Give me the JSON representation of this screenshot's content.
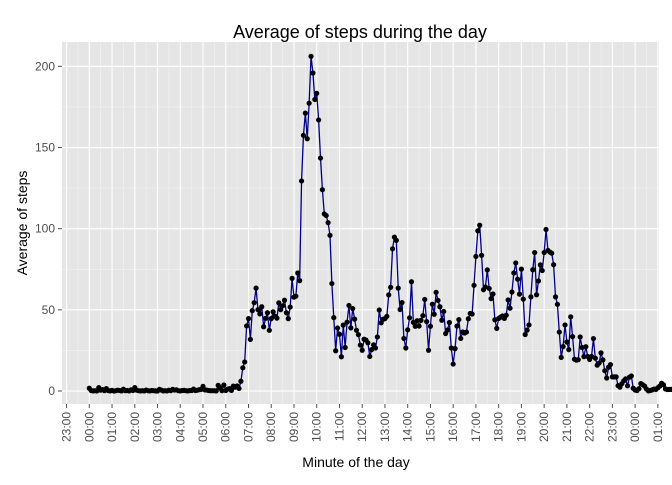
{
  "chart_data": {
    "type": "line",
    "title": "Average of steps during the day",
    "xlabel": "Minute of the day",
    "ylabel": "Average of steps",
    "ylim": [
      -8,
      215
    ],
    "x_range_hours": [
      -1.2,
      25.05
    ],
    "grid": true,
    "background": "#e5e5e5",
    "grid_color": "#ffffff",
    "line_color": "#00008b",
    "marker_color": "#000000",
    "xticks": [
      {
        "hour": -1,
        "label": "23:00"
      },
      {
        "hour": 0,
        "label": "00:00"
      },
      {
        "hour": 1,
        "label": "01:00"
      },
      {
        "hour": 2,
        "label": "02:00"
      },
      {
        "hour": 3,
        "label": "03:00"
      },
      {
        "hour": 4,
        "label": "04:00"
      },
      {
        "hour": 5,
        "label": "05:00"
      },
      {
        "hour": 6,
        "label": "06:00"
      },
      {
        "hour": 7,
        "label": "07:00"
      },
      {
        "hour": 8,
        "label": "08:00"
      },
      {
        "hour": 9,
        "label": "09:00"
      },
      {
        "hour": 10,
        "label": "10:00"
      },
      {
        "hour": 11,
        "label": "11:00"
      },
      {
        "hour": 12,
        "label": "12:00"
      },
      {
        "hour": 13,
        "label": "13:00"
      },
      {
        "hour": 14,
        "label": "14:00"
      },
      {
        "hour": 15,
        "label": "15:00"
      },
      {
        "hour": 16,
        "label": "16:00"
      },
      {
        "hour": 17,
        "label": "17:00"
      },
      {
        "hour": 18,
        "label": "18:00"
      },
      {
        "hour": 19,
        "label": "19:00"
      },
      {
        "hour": 20,
        "label": "20:00"
      },
      {
        "hour": 21,
        "label": "21:00"
      },
      {
        "hour": 22,
        "label": "22:00"
      },
      {
        "hour": 23,
        "label": "23:00"
      },
      {
        "hour": 24,
        "label": "00:00"
      },
      {
        "hour": 25,
        "label": "01:00"
      }
    ],
    "yticks": [
      0,
      50,
      100,
      150,
      200
    ],
    "y_minor": [
      25,
      75,
      125,
      175
    ],
    "series": [
      {
        "interval_hours": 0.0833333,
        "values": [
          1.7,
          0.3,
          0.1,
          0.2,
          0.1,
          2.1,
          0.5,
          0.9,
          0.2,
          1.5,
          0.3,
          0.1,
          0.4,
          0,
          0.2,
          0.5,
          0.3,
          0.1,
          1.1,
          0.2,
          0.3,
          0.1,
          0.7,
          0.3,
          2.1,
          0.5,
          0.2,
          0.1,
          0.2,
          0.1,
          0.6,
          0.2,
          0.1,
          0.3,
          0.2,
          0.1,
          0,
          1.0,
          0.6,
          0.1,
          0.2,
          0.1,
          0.5,
          0.2,
          1.0,
          0.6,
          0.7,
          0.2,
          0.1,
          0.3,
          0.4,
          0.2,
          0.1,
          0.3,
          0.3,
          1.2,
          0.3,
          0.5,
          0.8,
          1.0,
          2.9,
          0.7,
          0.6,
          0.3,
          0.2,
          0.2,
          0.2,
          0.1,
          3.5,
          2.0,
          0.2,
          3.7,
          0.3,
          1.2,
          1.5,
          0.4,
          3.0,
          2.4,
          3.1,
          1.6,
          6.0,
          14.3,
          17.9,
          40.1,
          44.6,
          31.8,
          49.5,
          54.4,
          63.4,
          50.1,
          47.5,
          51.9,
          39.6,
          44.8,
          48.2,
          37.4,
          44.6,
          48.8,
          46.1,
          44.9,
          54.3,
          50.1,
          52.5,
          55.9,
          48.2,
          44.6,
          51.7,
          69.4,
          57.8,
          58.4,
          72.7,
          68.0,
          129.4,
          157.5,
          171.2,
          155.4,
          177.3,
          206.2,
          195.9,
          179.6,
          183.4,
          167.0,
          143.5,
          124.0,
          109.1,
          108.1,
          103.7,
          95.9,
          66.2,
          45.2,
          24.8,
          38.8,
          34.98,
          21.1,
          40.6,
          26.8,
          42.4,
          52.7,
          38.9,
          50.8,
          44.3,
          37.4,
          34.7,
          28.3,
          25.1,
          31.9,
          31.4,
          29.7,
          21.3,
          25.5,
          28.4,
          26.5,
          33.3,
          49.9,
          42.0,
          44.2,
          44.6,
          46.0,
          59.2,
          63.9,
          87.6,
          94.8,
          92.8,
          63.4,
          50.2,
          54.5,
          32.4,
          26.5,
          37.7,
          45.1,
          67.3,
          42.3,
          39.9,
          43.3,
          40.0,
          43.5,
          46.4,
          56.4,
          42.8,
          25.1,
          39.9,
          53.5,
          47.3,
          60.8,
          55.8,
          51.9,
          43.6,
          49.0,
          35.4,
          37.6,
          42.2,
          26.5,
          16.6,
          26.1,
          40.0,
          44.0,
          32.4,
          36.4,
          35.7,
          36.3,
          44.5,
          47.8,
          47.4,
          65.1,
          82.9,
          98.7,
          102.1,
          83.6,
          62.4,
          64.1,
          74.6,
          63.2,
          56.9,
          59.8,
          43.9,
          38.6,
          44.7,
          45.5,
          46.2,
          44.7,
          46.7,
          56.1,
          51.0,
          61.0,
          72.7,
          78.9,
          68.9,
          59.7,
          75.1,
          56.6,
          34.8,
          37.5,
          40.7,
          58.0,
          74.7,
          85.3,
          59.3,
          67.8,
          77.7,
          74.2,
          85.3,
          99.5,
          86.6,
          85.6,
          84.9,
          77.8,
          58.0,
          53.4,
          36.3,
          20.7,
          27.4,
          40.7,
          30.2,
          25.5,
          45.7,
          33.5,
          19.6,
          19.0,
          19.3,
          33.3,
          26.8,
          21.2,
          27.3,
          21.3,
          19.5,
          21.3,
          32.3,
          20.2,
          15.9,
          17.2,
          23.5,
          19.2,
          12.5,
          8.0,
          14.7,
          16.3,
          8.7,
          8.7,
          8.7,
          3.3,
          2.4,
          4.5,
          6.3,
          7.5,
          3.2,
          8.5,
          9.3,
          1.7,
          0.6,
          0.3,
          1.4,
          4.6,
          3.9,
          3.0,
          1.2,
          0.1,
          0.3,
          0.7,
          1.2,
          1.0,
          2.0,
          3.0,
          4.8,
          3.8,
          1.3,
          0.9,
          1.0,
          1.0
        ]
      }
    ]
  }
}
